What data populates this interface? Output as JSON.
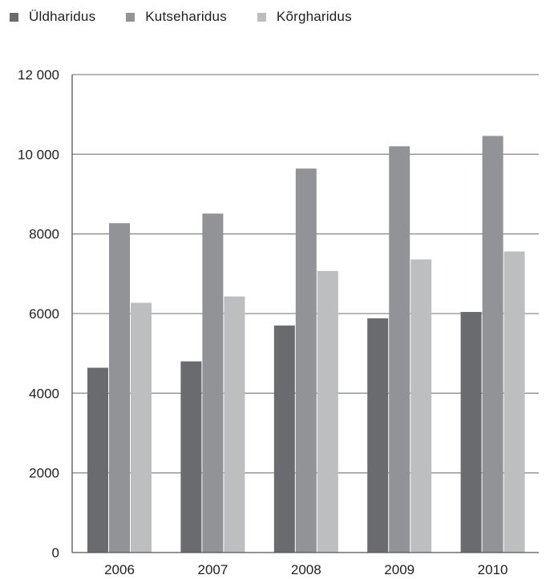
{
  "chart_data": {
    "type": "bar",
    "categories": [
      "2006",
      "2007",
      "2008",
      "2009",
      "2010"
    ],
    "series": [
      {
        "name": "Üldharidus",
        "color": "#6a6b6e",
        "values": [
          4640,
          4800,
          5700,
          5880,
          6040
        ]
      },
      {
        "name": "Kutseharidus",
        "color": "#929396",
        "values": [
          8270,
          8510,
          9640,
          10200,
          10460
        ]
      },
      {
        "name": "Kõrgharidus",
        "color": "#bdbec0",
        "values": [
          6270,
          6430,
          7070,
          7360,
          7560
        ]
      }
    ],
    "y_ticks": [
      {
        "value": 0,
        "label": "0"
      },
      {
        "value": 2000,
        "label": "2000"
      },
      {
        "value": 4000,
        "label": "4000"
      },
      {
        "value": 6000,
        "label": "6000"
      },
      {
        "value": 8000,
        "label": "8000"
      },
      {
        "value": 10000,
        "label": "10 000"
      },
      {
        "value": 12000,
        "label": "12 000"
      }
    ],
    "ylim": [
      0,
      12000
    ],
    "grid": true,
    "legend_position": "top-left"
  }
}
